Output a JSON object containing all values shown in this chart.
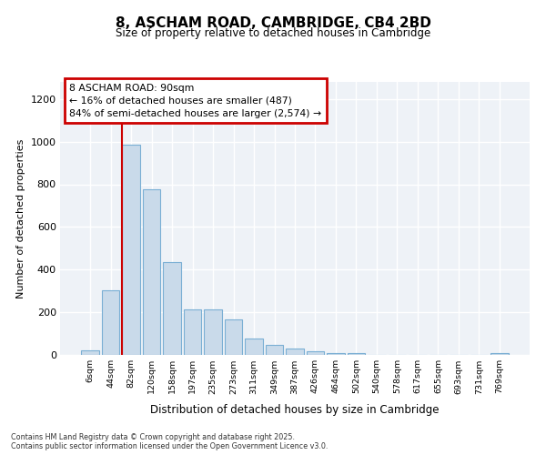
{
  "title": "8, ASCHAM ROAD, CAMBRIDGE, CB4 2BD",
  "subtitle": "Size of property relative to detached houses in Cambridge",
  "xlabel": "Distribution of detached houses by size in Cambridge",
  "ylabel": "Number of detached properties",
  "footnote1": "Contains HM Land Registry data © Crown copyright and database right 2025.",
  "footnote2": "Contains public sector information licensed under the Open Government Licence v3.0.",
  "annotation_title": "8 ASCHAM ROAD: 90sqm",
  "annotation_line1": "← 16% of detached houses are smaller (487)",
  "annotation_line2": "84% of semi-detached houses are larger (2,574) →",
  "bar_color": "#c9daea",
  "bar_edge_color": "#7aafd4",
  "vline_color": "#cc0000",
  "annotation_box_edgecolor": "#cc0000",
  "annotation_box_facecolor": "#ffffff",
  "background_color": "#eef2f7",
  "grid_color": "#ffffff",
  "categories": [
    "6sqm",
    "44sqm",
    "82sqm",
    "120sqm",
    "158sqm",
    "197sqm",
    "235sqm",
    "273sqm",
    "311sqm",
    "349sqm",
    "387sqm",
    "426sqm",
    "464sqm",
    "502sqm",
    "540sqm",
    "578sqm",
    "617sqm",
    "655sqm",
    "693sqm",
    "731sqm",
    "769sqm"
  ],
  "values": [
    20,
    305,
    985,
    775,
    435,
    215,
    215,
    165,
    75,
    48,
    32,
    18,
    10,
    10,
    2,
    2,
    2,
    2,
    2,
    2,
    8
  ],
  "vline_index": 2,
  "ylim": [
    0,
    1280
  ],
  "yticks": [
    0,
    200,
    400,
    600,
    800,
    1000,
    1200
  ]
}
